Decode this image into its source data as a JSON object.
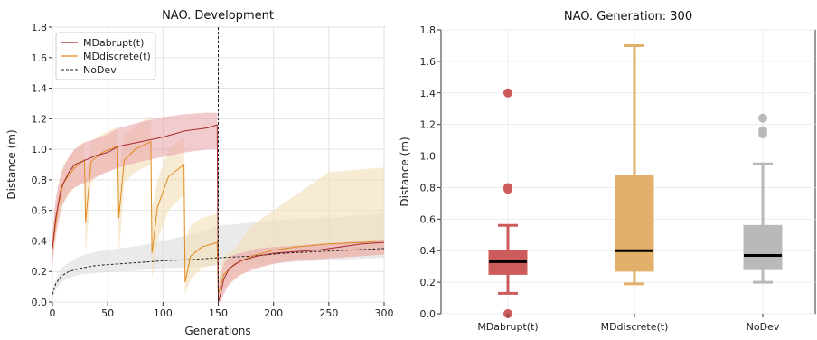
{
  "chart_data": [
    {
      "type": "line",
      "title": "NAO. Development",
      "xlabel": "Generations",
      "ylabel": "Distance (m)",
      "xlim": [
        0,
        300
      ],
      "ylim": [
        0,
        1.8
      ],
      "xticks": [
        "0",
        "50",
        "100",
        "150",
        "200",
        "250",
        "300"
      ],
      "yticks": [
        "0.0",
        "0.2",
        "0.4",
        "0.6",
        "0.8",
        "1.0",
        "1.2",
        "1.4",
        "1.6",
        "1.8"
      ],
      "grid": true,
      "legend_position": "top-left",
      "colors": {
        "abrupt": "#a52a2a",
        "discrete": "#e08a1e",
        "nodev": "#222222",
        "abrupt_band": "#e8a0a8",
        "discrete_band": "#f3ddb8",
        "nodev_band": "#dcdcdc"
      },
      "series": [
        {
          "name": "MDabrupt(t)",
          "x": [
            0,
            3,
            8,
            15,
            20,
            30,
            40,
            50,
            60,
            80,
            100,
            120,
            140,
            149,
            150,
            152,
            155,
            160,
            170,
            185,
            200,
            220,
            240,
            260,
            280,
            300
          ],
          "y": [
            0.35,
            0.55,
            0.75,
            0.85,
            0.9,
            0.93,
            0.96,
            0.98,
            1.02,
            1.05,
            1.08,
            1.12,
            1.14,
            1.16,
            0.0,
            0.05,
            0.15,
            0.22,
            0.27,
            0.3,
            0.32,
            0.33,
            0.34,
            0.36,
            0.38,
            0.39
          ],
          "upper": [
            0.45,
            0.68,
            0.85,
            0.95,
            1.0,
            1.05,
            1.07,
            1.1,
            1.14,
            1.18,
            1.21,
            1.23,
            1.24,
            1.24,
            0.1,
            0.18,
            0.25,
            0.3,
            0.32,
            0.35,
            0.36,
            0.37,
            0.38,
            0.39,
            0.4,
            0.41
          ],
          "lower": [
            0.25,
            0.45,
            0.62,
            0.72,
            0.75,
            0.78,
            0.82,
            0.85,
            0.88,
            0.92,
            0.95,
            0.98,
            1.0,
            1.0,
            0.0,
            0.0,
            0.05,
            0.12,
            0.18,
            0.22,
            0.25,
            0.27,
            0.28,
            0.29,
            0.3,
            0.31
          ]
        },
        {
          "name": "MDdiscrete(t)",
          "x": [
            0,
            5,
            10,
            20,
            29,
            30,
            35,
            45,
            59,
            60,
            65,
            75,
            89,
            90,
            95,
            105,
            119,
            120,
            125,
            135,
            149,
            150,
            155,
            165,
            180,
            200,
            220,
            250,
            280,
            300
          ],
          "y": [
            0.35,
            0.62,
            0.78,
            0.88,
            0.93,
            0.52,
            0.92,
            0.98,
            1.02,
            0.55,
            0.93,
            1.0,
            1.05,
            0.32,
            0.62,
            0.82,
            0.9,
            0.13,
            0.3,
            0.36,
            0.39,
            0.05,
            0.18,
            0.25,
            0.3,
            0.34,
            0.36,
            0.38,
            0.39,
            0.4
          ],
          "upper": [
            0.45,
            0.75,
            0.9,
            1.0,
            1.05,
            0.8,
            1.05,
            1.1,
            1.15,
            0.85,
            1.1,
            1.15,
            1.22,
            0.6,
            0.8,
            1.0,
            1.08,
            0.4,
            0.5,
            0.55,
            0.58,
            0.15,
            0.3,
            0.35,
            0.5,
            0.6,
            0.7,
            0.85,
            0.87,
            0.88
          ],
          "lower": [
            0.25,
            0.5,
            0.65,
            0.75,
            0.8,
            0.3,
            0.78,
            0.85,
            0.88,
            0.3,
            0.78,
            0.85,
            0.9,
            0.15,
            0.4,
            0.6,
            0.7,
            0.05,
            0.15,
            0.22,
            0.25,
            0.0,
            0.08,
            0.15,
            0.22,
            0.25,
            0.28,
            0.29,
            0.3,
            0.31
          ]
        },
        {
          "name": "NoDev",
          "x": [
            0,
            3,
            8,
            15,
            25,
            40,
            60,
            80,
            100,
            130,
            150,
            180,
            210,
            240,
            270,
            300
          ],
          "y": [
            0.05,
            0.12,
            0.17,
            0.2,
            0.22,
            0.24,
            0.25,
            0.26,
            0.27,
            0.28,
            0.29,
            0.3,
            0.32,
            0.33,
            0.34,
            0.35
          ],
          "upper": [
            0.08,
            0.15,
            0.22,
            0.26,
            0.3,
            0.33,
            0.35,
            0.37,
            0.4,
            0.45,
            0.5,
            0.52,
            0.54,
            0.55,
            0.56,
            0.58
          ],
          "lower": [
            0.02,
            0.08,
            0.13,
            0.16,
            0.18,
            0.19,
            0.2,
            0.21,
            0.22,
            0.23,
            0.24,
            0.25,
            0.26,
            0.27,
            0.28,
            0.29
          ]
        }
      ],
      "vline_x": 150
    },
    {
      "type": "box",
      "title": "NAO. Generation: 300",
      "xlabel": "",
      "ylabel": "Distance (m)",
      "ylim": [
        0,
        1.8
      ],
      "yticks": [
        "0.0",
        "0.2",
        "0.4",
        "0.6",
        "0.8",
        "1.0",
        "1.2",
        "1.4",
        "1.6",
        "1.8"
      ],
      "grid": true,
      "categories": [
        "MDabrupt(t)",
        "MDdiscrete(t)",
        "NoDev"
      ],
      "boxes": [
        {
          "whislo": 0.13,
          "q1": 0.25,
          "med": 0.33,
          "q3": 0.4,
          "whishi": 0.56,
          "fliers": [
            1.4,
            0.8,
            0.79,
            0.0
          ],
          "color": "#cc5b5b"
        },
        {
          "whislo": 0.19,
          "q1": 0.27,
          "med": 0.4,
          "q3": 0.88,
          "whishi": 1.7,
          "fliers": [],
          "color": "#e3b06b"
        },
        {
          "whislo": 0.2,
          "q1": 0.28,
          "med": 0.37,
          "q3": 0.56,
          "whishi": 0.95,
          "fliers": [
            1.24,
            1.16,
            1.14
          ],
          "color": "#b9b9b9"
        }
      ]
    }
  ]
}
